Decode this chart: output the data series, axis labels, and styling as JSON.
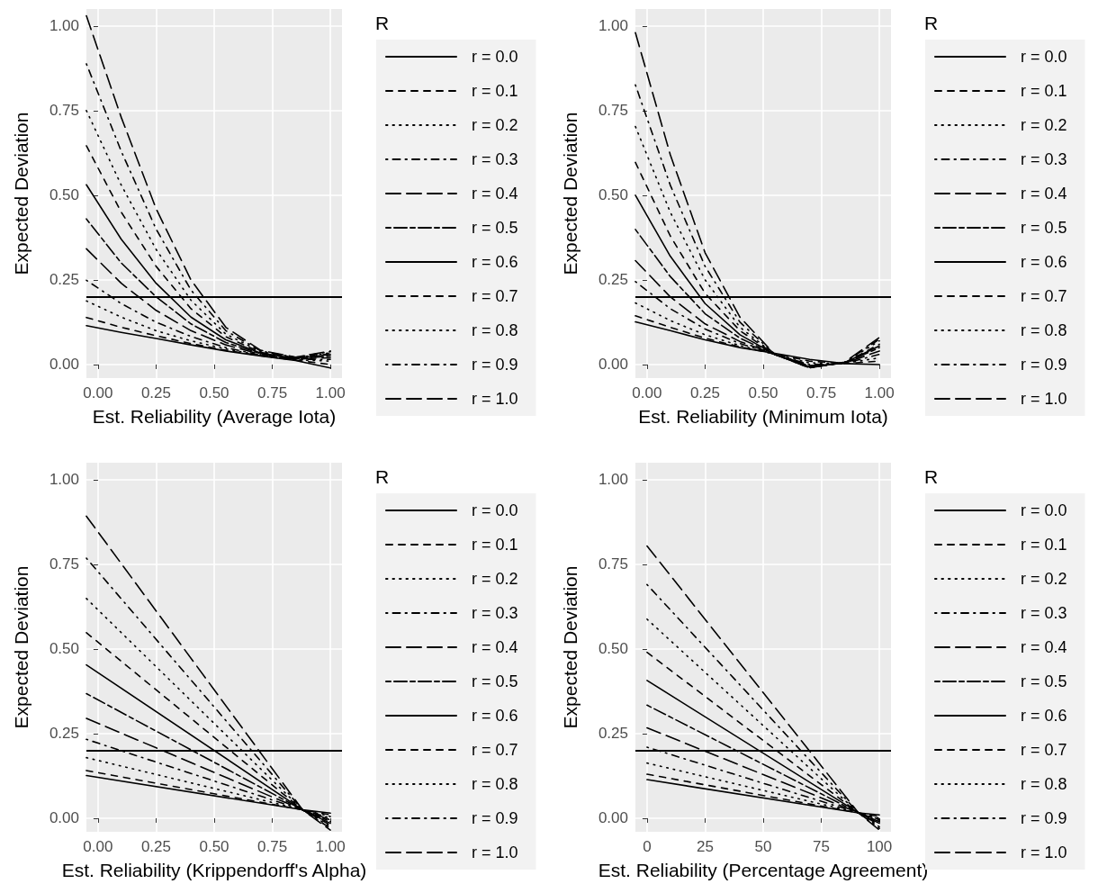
{
  "chart_data": [
    {
      "type": "line",
      "xlabel": "Est. Reliability (Average Iota)",
      "ylabel": "Expected Deviation",
      "legend_title": "R",
      "legend": "right",
      "grid": true,
      "marker": "none",
      "xlim": [
        -0.05,
        1.05
      ],
      "ylim": [
        -0.04,
        1.05
      ],
      "xticks": [
        {
          "value": 0,
          "label": "0.00"
        },
        {
          "value": 0.25,
          "label": "0.25"
        },
        {
          "value": 0.5,
          "label": "0.50"
        },
        {
          "value": 0.75,
          "label": "0.75"
        },
        {
          "value": 1,
          "label": "1.00"
        }
      ],
      "yticks": [
        {
          "value": 0,
          "label": "0.00"
        },
        {
          "value": 0.25,
          "label": "0.25"
        },
        {
          "value": 0.5,
          "label": "0.50"
        },
        {
          "value": 0.75,
          "label": "0.75"
        },
        {
          "value": 1,
          "label": "1.00"
        }
      ],
      "ref_lines": [
        {
          "axis": "y",
          "value": 0.2,
          "color": "#000000",
          "line_style": "solid"
        }
      ],
      "series": [
        {
          "name": "r = 0.0",
          "color": "#000000",
          "line_style": "solid",
          "x": [
            -0.05,
            0.1,
            0.25,
            0.4,
            0.55,
            0.7,
            0.85,
            1.0
          ],
          "values": [
            0.115,
            0.095,
            0.077,
            0.058,
            0.04,
            0.025,
            0.012,
            -0.01
          ]
        },
        {
          "name": "r = 0.1",
          "color": "#000000",
          "line_style": "dashed",
          "x": [
            -0.05,
            0.1,
            0.25,
            0.4,
            0.55,
            0.7,
            0.85,
            1.0
          ],
          "values": [
            0.139,
            0.11,
            0.085,
            0.062,
            0.042,
            0.026,
            0.013,
            0.0
          ]
        },
        {
          "name": "r = 0.2",
          "color": "#000000",
          "line_style": "dotted",
          "x": [
            -0.05,
            0.1,
            0.25,
            0.4,
            0.55,
            0.7,
            0.85,
            1.0
          ],
          "values": [
            0.188,
            0.14,
            0.1,
            0.07,
            0.046,
            0.027,
            0.014,
            0.01
          ]
        },
        {
          "name": "r = 0.3",
          "color": "#000000",
          "line_style": "dotdash",
          "x": [
            -0.05,
            0.1,
            0.25,
            0.4,
            0.55,
            0.7,
            0.85,
            1.0
          ],
          "values": [
            0.249,
            0.18,
            0.125,
            0.083,
            0.05,
            0.028,
            0.015,
            0.015
          ]
        },
        {
          "name": "r = 0.4",
          "color": "#000000",
          "line_style": "longdash",
          "x": [
            -0.05,
            0.1,
            0.25,
            0.4,
            0.55,
            0.7,
            0.85,
            1.0
          ],
          "values": [
            0.342,
            0.24,
            0.16,
            0.1,
            0.058,
            0.03,
            0.016,
            0.02
          ]
        },
        {
          "name": "r = 0.5",
          "color": "#000000",
          "line_style": "twodash",
          "x": [
            -0.05,
            0.1,
            0.25,
            0.4,
            0.55,
            0.7,
            0.85,
            1.0
          ],
          "values": [
            0.43,
            0.3,
            0.2,
            0.12,
            0.065,
            0.032,
            0.017,
            0.025
          ]
        },
        {
          "name": "r = 0.6",
          "color": "#000000",
          "line_style": "solid",
          "x": [
            -0.05,
            0.1,
            0.25,
            0.4,
            0.55,
            0.7,
            0.85,
            1.0
          ],
          "values": [
            0.531,
            0.37,
            0.24,
            0.14,
            0.073,
            0.034,
            0.018,
            0.03
          ]
        },
        {
          "name": "r = 0.7",
          "color": "#000000",
          "line_style": "dashed",
          "x": [
            -0.05,
            0.1,
            0.25,
            0.4,
            0.55,
            0.7,
            0.85,
            1.0
          ],
          "values": [
            0.646,
            0.45,
            0.29,
            0.165,
            0.082,
            0.036,
            0.019,
            0.032
          ]
        },
        {
          "name": "r = 0.8",
          "color": "#000000",
          "line_style": "dotted",
          "x": [
            -0.05,
            0.1,
            0.25,
            0.4,
            0.55,
            0.7,
            0.85,
            1.0
          ],
          "values": [
            0.75,
            0.53,
            0.34,
            0.19,
            0.09,
            0.038,
            0.02,
            0.035
          ]
        },
        {
          "name": "r = 0.9",
          "color": "#000000",
          "line_style": "dotdash",
          "x": [
            -0.05,
            0.1,
            0.25,
            0.4,
            0.55,
            0.7,
            0.85,
            1.0
          ],
          "values": [
            0.888,
            0.63,
            0.4,
            0.22,
            0.1,
            0.04,
            0.021,
            0.038
          ]
        },
        {
          "name": "r = 1.0",
          "color": "#000000",
          "line_style": "longdash",
          "x": [
            -0.05,
            0.1,
            0.25,
            0.4,
            0.55,
            0.7,
            0.85,
            1.0
          ],
          "values": [
            1.03,
            0.73,
            0.46,
            0.25,
            0.11,
            0.042,
            0.022,
            0.04
          ]
        }
      ]
    },
    {
      "type": "line",
      "xlabel": "Est. Reliability (Minimum Iota)",
      "ylabel": "Expected Deviation",
      "legend_title": "R",
      "legend": "right",
      "grid": true,
      "marker": "none",
      "xlim": [
        -0.05,
        1.05
      ],
      "ylim": [
        -0.04,
        1.05
      ],
      "xticks": [
        {
          "value": 0,
          "label": "0.00"
        },
        {
          "value": 0.25,
          "label": "0.25"
        },
        {
          "value": 0.5,
          "label": "0.50"
        },
        {
          "value": 0.75,
          "label": "0.75"
        },
        {
          "value": 1,
          "label": "1.00"
        }
      ],
      "yticks": [
        {
          "value": 0,
          "label": "0.00"
        },
        {
          "value": 0.25,
          "label": "0.25"
        },
        {
          "value": 0.5,
          "label": "0.50"
        },
        {
          "value": 0.75,
          "label": "0.75"
        },
        {
          "value": 1,
          "label": "1.00"
        }
      ],
      "ref_lines": [
        {
          "axis": "y",
          "value": 0.2,
          "color": "#000000",
          "line_style": "solid"
        }
      ],
      "series": [
        {
          "name": "r = 0.0",
          "color": "#000000",
          "line_style": "solid",
          "x": [
            -0.05,
            0.1,
            0.25,
            0.4,
            0.55,
            0.7,
            0.85,
            1.0
          ],
          "values": [
            0.126,
            0.1,
            0.073,
            0.05,
            0.033,
            0.015,
            0.003,
            0.0
          ]
        },
        {
          "name": "r = 0.1",
          "color": "#000000",
          "line_style": "dashed",
          "x": [
            -0.05,
            0.1,
            0.25,
            0.4,
            0.55,
            0.7,
            0.85,
            1.0
          ],
          "values": [
            0.144,
            0.11,
            0.078,
            0.052,
            0.032,
            0.01,
            0.003,
            0.01
          ]
        },
        {
          "name": "r = 0.2",
          "color": "#000000",
          "line_style": "dotted",
          "x": [
            -0.05,
            0.1,
            0.25,
            0.4,
            0.55,
            0.7,
            0.85,
            1.0
          ],
          "values": [
            0.182,
            0.13,
            0.088,
            0.056,
            0.03,
            0.005,
            0.003,
            0.02
          ]
        },
        {
          "name": "r = 0.3",
          "color": "#000000",
          "line_style": "dotdash",
          "x": [
            -0.05,
            0.1,
            0.25,
            0.4,
            0.55,
            0.7,
            0.85,
            1.0
          ],
          "values": [
            0.245,
            0.165,
            0.105,
            0.062,
            0.03,
            0.0,
            0.003,
            0.03
          ]
        },
        {
          "name": "r = 0.4",
          "color": "#000000",
          "line_style": "longdash",
          "x": [
            -0.05,
            0.1,
            0.25,
            0.4,
            0.55,
            0.7,
            0.85,
            1.0
          ],
          "values": [
            0.307,
            0.2,
            0.12,
            0.068,
            0.03,
            -0.003,
            0.004,
            0.04
          ]
        },
        {
          "name": "r = 0.5",
          "color": "#000000",
          "line_style": "twodash",
          "x": [
            -0.05,
            0.1,
            0.25,
            0.4,
            0.55,
            0.7,
            0.85,
            1.0
          ],
          "values": [
            0.399,
            0.26,
            0.15,
            0.078,
            0.03,
            -0.005,
            0.004,
            0.05
          ]
        },
        {
          "name": "r = 0.6",
          "color": "#000000",
          "line_style": "solid",
          "x": [
            -0.05,
            0.1,
            0.25,
            0.4,
            0.55,
            0.7,
            0.85,
            1.0
          ],
          "values": [
            0.5,
            0.32,
            0.18,
            0.088,
            0.03,
            -0.007,
            0.005,
            0.055
          ]
        },
        {
          "name": "r = 0.7",
          "color": "#000000",
          "line_style": "dashed",
          "x": [
            -0.05,
            0.1,
            0.25,
            0.4,
            0.55,
            0.7,
            0.85,
            1.0
          ],
          "values": [
            0.597,
            0.38,
            0.21,
            0.1,
            0.03,
            -0.008,
            0.005,
            0.06
          ]
        },
        {
          "name": "r = 0.8",
          "color": "#000000",
          "line_style": "dotted",
          "x": [
            -0.05,
            0.1,
            0.25,
            0.4,
            0.55,
            0.7,
            0.85,
            1.0
          ],
          "values": [
            0.703,
            0.45,
            0.25,
            0.11,
            0.03,
            -0.009,
            0.006,
            0.07
          ]
        },
        {
          "name": "r = 0.9",
          "color": "#000000",
          "line_style": "dotdash",
          "x": [
            -0.05,
            0.1,
            0.25,
            0.4,
            0.55,
            0.7,
            0.85,
            1.0
          ],
          "values": [
            0.826,
            0.53,
            0.29,
            0.125,
            0.03,
            -0.01,
            0.006,
            0.075
          ]
        },
        {
          "name": "r = 1.0",
          "color": "#000000",
          "line_style": "longdash",
          "x": [
            -0.05,
            0.1,
            0.25,
            0.4,
            0.55,
            0.7,
            0.85,
            1.0
          ],
          "values": [
            0.98,
            0.62,
            0.33,
            0.14,
            0.03,
            -0.01,
            0.007,
            0.08
          ]
        }
      ]
    },
    {
      "type": "line",
      "xlabel": "Est. Reliability (Krippendorff's Alpha)",
      "ylabel": "Expected Deviation",
      "legend_title": "R",
      "legend": "right",
      "grid": true,
      "marker": "none",
      "xlim": [
        -0.05,
        1.05
      ],
      "ylim": [
        -0.04,
        1.05
      ],
      "xticks": [
        {
          "value": 0,
          "label": "0.00"
        },
        {
          "value": 0.25,
          "label": "0.25"
        },
        {
          "value": 0.5,
          "label": "0.50"
        },
        {
          "value": 0.75,
          "label": "0.75"
        },
        {
          "value": 1,
          "label": "1.00"
        }
      ],
      "yticks": [
        {
          "value": 0,
          "label": "0.00"
        },
        {
          "value": 0.25,
          "label": "0.25"
        },
        {
          "value": 0.5,
          "label": "0.50"
        },
        {
          "value": 0.75,
          "label": "0.75"
        },
        {
          "value": 1,
          "label": "1.00"
        }
      ],
      "ref_lines": [
        {
          "axis": "y",
          "value": 0.2,
          "color": "#000000",
          "line_style": "solid"
        }
      ],
      "series": [
        {
          "name": "r = 0.0",
          "color": "#000000",
          "line_style": "solid",
          "x": [
            -0.05,
            0.88,
            1.0
          ],
          "values": [
            0.126,
            0.025,
            0.015
          ]
        },
        {
          "name": "r = 0.1",
          "color": "#000000",
          "line_style": "dashed",
          "x": [
            -0.05,
            0.88,
            1.0
          ],
          "values": [
            0.141,
            0.025,
            0.01
          ]
        },
        {
          "name": "r = 0.2",
          "color": "#000000",
          "line_style": "dotted",
          "x": [
            -0.05,
            0.88,
            1.0
          ],
          "values": [
            0.179,
            0.025,
            0.005
          ]
        },
        {
          "name": "r = 0.3",
          "color": "#000000",
          "line_style": "dotdash",
          "x": [
            -0.05,
            0.88,
            1.0
          ],
          "values": [
            0.233,
            0.025,
            0.0
          ]
        },
        {
          "name": "r = 0.4",
          "color": "#000000",
          "line_style": "longdash",
          "x": [
            -0.05,
            0.88,
            1.0
          ],
          "values": [
            0.295,
            0.025,
            -0.005
          ]
        },
        {
          "name": "r = 0.5",
          "color": "#000000",
          "line_style": "twodash",
          "x": [
            -0.05,
            0.88,
            1.0
          ],
          "values": [
            0.368,
            0.025,
            -0.01
          ]
        },
        {
          "name": "r = 0.6",
          "color": "#000000",
          "line_style": "solid",
          "x": [
            -0.05,
            0.88,
            1.0
          ],
          "values": [
            0.453,
            0.025,
            -0.015
          ]
        },
        {
          "name": "r = 0.7",
          "color": "#000000",
          "line_style": "dashed",
          "x": [
            -0.05,
            0.88,
            1.0
          ],
          "values": [
            0.548,
            0.025,
            -0.02
          ]
        },
        {
          "name": "r = 0.8",
          "color": "#000000",
          "line_style": "dotted",
          "x": [
            -0.05,
            0.88,
            1.0
          ],
          "values": [
            0.649,
            0.025,
            -0.025
          ]
        },
        {
          "name": "r = 0.9",
          "color": "#000000",
          "line_style": "dotdash",
          "x": [
            -0.05,
            0.88,
            1.0
          ],
          "values": [
            0.768,
            0.025,
            -0.03
          ]
        },
        {
          "name": "r = 1.0",
          "color": "#000000",
          "line_style": "longdash",
          "x": [
            -0.05,
            0.88,
            1.0
          ],
          "values": [
            0.892,
            0.025,
            -0.035
          ]
        }
      ]
    },
    {
      "type": "line",
      "xlabel": "Est. Reliability (Percentage Agreement)",
      "ylabel": "Expected Deviation",
      "legend_title": "R",
      "legend": "right",
      "grid": true,
      "marker": "none",
      "xlim": [
        -5,
        105
      ],
      "ylim": [
        -0.04,
        1.05
      ],
      "xticks": [
        0,
        25,
        50,
        75,
        100
      ],
      "yticks": [
        {
          "value": 0,
          "label": "0.00"
        },
        {
          "value": 0.25,
          "label": "0.25"
        },
        {
          "value": 0.5,
          "label": "0.50"
        },
        {
          "value": 0.75,
          "label": "0.75"
        },
        {
          "value": 1,
          "label": "1.00"
        }
      ],
      "ref_lines": [
        {
          "axis": "y",
          "value": 0.2,
          "color": "#000000",
          "line_style": "solid"
        }
      ],
      "series": [
        {
          "name": "r = 0.0",
          "color": "#000000",
          "line_style": "solid",
          "x": [
            0,
            91,
            100
          ],
          "values": [
            0.114,
            0.016,
            0.01
          ]
        },
        {
          "name": "r = 0.1",
          "color": "#000000",
          "line_style": "dashed",
          "x": [
            0,
            91,
            100
          ],
          "values": [
            0.13,
            0.016,
            0.005
          ]
        },
        {
          "name": "r = 0.2",
          "color": "#000000",
          "line_style": "dotted",
          "x": [
            0,
            91,
            100
          ],
          "values": [
            0.163,
            0.016,
            0.0
          ]
        },
        {
          "name": "r = 0.3",
          "color": "#000000",
          "line_style": "dotdash",
          "x": [
            0,
            91,
            100
          ],
          "values": [
            0.21,
            0.016,
            -0.003
          ]
        },
        {
          "name": "r = 0.4",
          "color": "#000000",
          "line_style": "longdash",
          "x": [
            0,
            91,
            100
          ],
          "values": [
            0.267,
            0.016,
            -0.006
          ]
        },
        {
          "name": "r = 0.5",
          "color": "#000000",
          "line_style": "twodash",
          "x": [
            0,
            91,
            100
          ],
          "values": [
            0.334,
            0.016,
            -0.01
          ]
        },
        {
          "name": "r = 0.6",
          "color": "#000000",
          "line_style": "solid",
          "x": [
            0,
            91,
            100
          ],
          "values": [
            0.407,
            0.016,
            -0.015
          ]
        },
        {
          "name": "r = 0.7",
          "color": "#000000",
          "line_style": "dashed",
          "x": [
            0,
            91,
            100
          ],
          "values": [
            0.49,
            0.016,
            -0.02
          ]
        },
        {
          "name": "r = 0.8",
          "color": "#000000",
          "line_style": "dotted",
          "x": [
            0,
            91,
            100
          ],
          "values": [
            0.588,
            0.016,
            -0.025
          ]
        },
        {
          "name": "r = 0.9",
          "color": "#000000",
          "line_style": "dotdash",
          "x": [
            0,
            91,
            100
          ],
          "values": [
            0.69,
            0.016,
            -0.03
          ]
        },
        {
          "name": "r = 1.0",
          "color": "#000000",
          "line_style": "longdash",
          "x": [
            0,
            91,
            100
          ],
          "values": [
            0.804,
            0.016,
            -0.035
          ]
        }
      ]
    }
  ]
}
